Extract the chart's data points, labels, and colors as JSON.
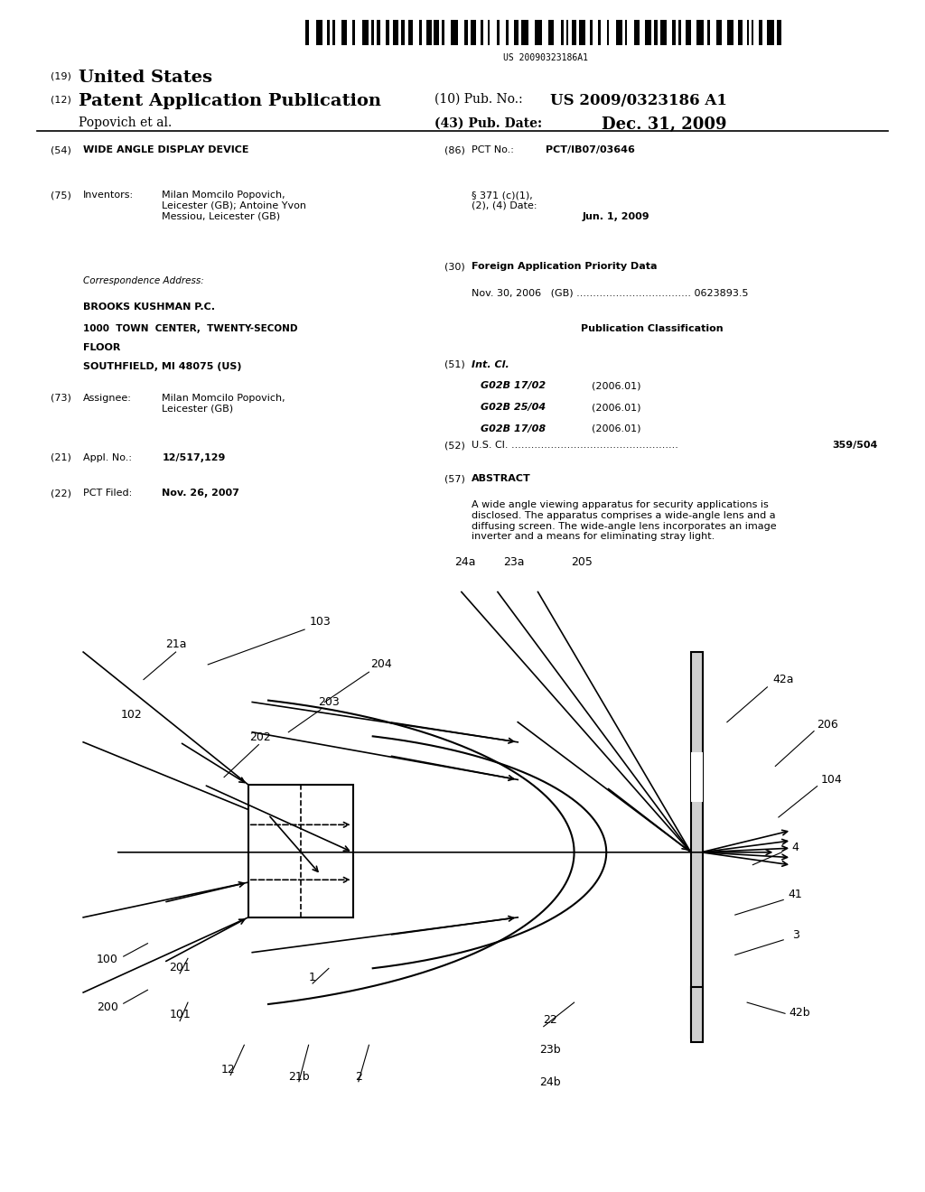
{
  "bg_color": "#ffffff",
  "page_width": 10.24,
  "page_height": 13.2,
  "barcode_text": "US 20090323186A1",
  "patent_type_number": "(19)",
  "patent_type": "United States",
  "patent_kind_number": "(12)",
  "patent_kind": "Patent Application Publication",
  "pub_no_label": "(10) Pub. No.:",
  "pub_no_value": "US 2009/0323186 A1",
  "applicant": "Popovich et al.",
  "pub_date_label": "(43) Pub. Date:",
  "pub_date_value": "Dec. 31, 2009",
  "field_54_num": "(54)",
  "field_54": "WIDE ANGLE DISPLAY DEVICE",
  "field_75_num": "(75)",
  "field_75_label": "Inventors:",
  "field_75_val": "Milan Momcilo Popovich,\nLeicester (GB); Antoine Yvon\nMessiou, Leicester (GB)",
  "corr_label": "Correspondence Address:",
  "corr_line1": "BROOKS KUSHMAN P.C.",
  "corr_line2": "1000  TOWN  CENTER,  TWENTY-SECOND",
  "corr_line3": "FLOOR",
  "corr_line4": "SOUTHFIELD, MI 48075 (US)",
  "field_73_num": "(73)",
  "field_73_label": "Assignee:",
  "field_73_val": "Milan Momcilo Popovich,\nLeicester (GB)",
  "field_21_num": "(21)",
  "field_21_label": "Appl. No.:",
  "field_21_val": "12/517,129",
  "field_22_num": "(22)",
  "field_22_label": "PCT Filed:",
  "field_22_val": "Nov. 26, 2007",
  "field_86_num": "(86)",
  "field_86_label": "PCT No.:",
  "field_86_val": "PCT/IB07/03646",
  "field_371": "§ 371 (c)(1),\n(2), (4) Date:",
  "field_371_val": "Jun. 1, 2009",
  "field_30_num": "(30)",
  "field_30_label": "Foreign Application Priority Data",
  "field_30_entry": "Nov. 30, 2006   (GB) ................................... 0623893.5",
  "pub_class_label": "Publication Classification",
  "field_51_num": "(51)",
  "field_51_label": "Int. Cl.",
  "field_51_entries": [
    [
      "G02B 17/02",
      "(2006.01)"
    ],
    [
      "G02B 25/04",
      "(2006.01)"
    ],
    [
      "G02B 17/08",
      "(2006.01)"
    ]
  ],
  "field_52_num": "(52)",
  "field_52_label": "U.S. Cl.",
  "field_52_dots": "...................................................",
  "field_52_val": "359/504",
  "field_57_num": "(57)",
  "field_57_label": "ABSTRACT",
  "field_57_text": "A wide angle viewing apparatus for security applications is\ndisclosed. The apparatus comprises a wide-angle lens and a\ndiffusing screen. The wide-angle lens incorporates an image\ninverter and a means for eliminating stray light."
}
